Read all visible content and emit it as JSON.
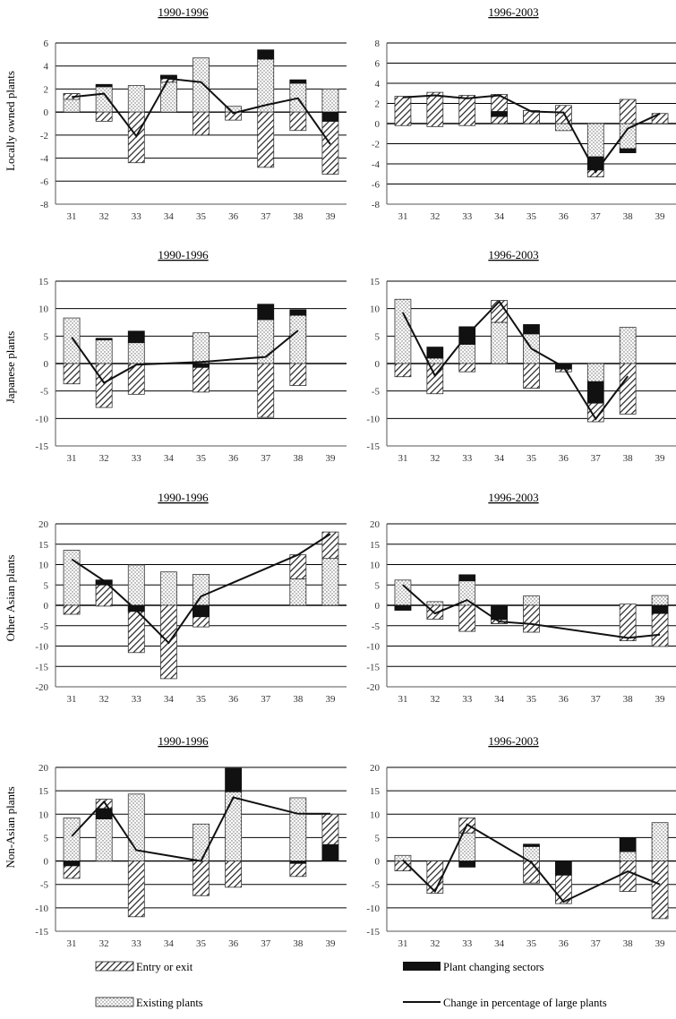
{
  "legend": {
    "entry_exit": "Entry or exit",
    "existing": "Existing plants",
    "changing": "Plant changing sectors",
    "line": "Change in percentage of large plants"
  },
  "row_labels": [
    "Locally owned plants",
    "Japanese plants",
    "Other Asian plants",
    "Non-Asian plants"
  ],
  "colors": {
    "axis": "#555555",
    "grid": "#000000",
    "changing": "#111111",
    "line": "#111111"
  },
  "chart_data": [
    {
      "type": "bar",
      "title": "1990-1996",
      "ylabel": "Locally owned plants",
      "categories": [
        "31",
        "32",
        "33",
        "34",
        "35",
        "36",
        "37",
        "38",
        "39"
      ],
      "yticks": [
        -8,
        -6,
        -4,
        -2,
        0,
        2,
        4,
        6
      ],
      "ylim": [
        -8,
        6
      ],
      "bars": [
        {
          "existing": [
            0,
            1.6
          ],
          "entry": [
            1.1,
            1.6
          ],
          "changing": null,
          "extra_entry": null
        },
        {
          "existing": [
            0,
            2.2
          ],
          "entry": [
            -0.8,
            0
          ],
          "changing": [
            2.2,
            2.4
          ]
        },
        {
          "existing": [
            0,
            2.3
          ],
          "entry": [
            -4.4,
            0
          ],
          "changing": null
        },
        {
          "existing": [
            0,
            2.6
          ],
          "entry": [
            2.6,
            3.1
          ],
          "changing": [
            2.9,
            3.2
          ]
        },
        {
          "existing": [
            0,
            4.7
          ],
          "entry": [
            -2.0,
            0
          ],
          "changing": null
        },
        {
          "existing": [
            0,
            0.5
          ],
          "entry": [
            -0.7,
            0
          ],
          "changing": null
        },
        {
          "existing": [
            0,
            4.6
          ],
          "entry": [
            -4.8,
            0
          ],
          "changing": [
            4.6,
            5.4
          ]
        },
        {
          "existing": [
            0,
            2.5
          ],
          "entry": [
            -1.6,
            0
          ],
          "changing": [
            2.5,
            2.8
          ]
        },
        {
          "existing": [
            0,
            2.0
          ],
          "entry": [
            -5.4,
            -0.8
          ],
          "changing": [
            -0.8,
            0
          ]
        }
      ],
      "line": [
        1.3,
        1.6,
        -2.1,
        2.9,
        2.6,
        -0.1,
        0.6,
        1.2,
        -2.8
      ]
    },
    {
      "type": "bar",
      "title": "1996-2003",
      "ylabel": "",
      "categories": [
        "31",
        "32",
        "33",
        "34",
        "35",
        "36",
        "37",
        "38",
        "39"
      ],
      "yticks": [
        -8,
        -6,
        -4,
        -2,
        0,
        2,
        4,
        6,
        8
      ],
      "ylim": [
        -8,
        8
      ],
      "bars": [
        {
          "existing": [
            0,
            0.5
          ],
          "entry": [
            -0.2,
            2.7
          ],
          "changing": null
        },
        {
          "existing": null,
          "entry": [
            -0.3,
            3.1
          ],
          "changing": null
        },
        {
          "existing": null,
          "entry": [
            -0.2,
            2.8
          ],
          "changing": null
        },
        {
          "existing": null,
          "entry": [
            0,
            2.9
          ],
          "changing": [
            0.7,
            1.2
          ]
        },
        {
          "existing": [
            0,
            1.3
          ],
          "entry": [
            0,
            1.3
          ],
          "changing": null
        },
        {
          "existing": [
            -0.7,
            0
          ],
          "entry": [
            0,
            1.8
          ],
          "changing": null
        },
        {
          "existing": [
            -3.3,
            0
          ],
          "entry": [
            -5.3,
            -4.6
          ],
          "changing": [
            -4.6,
            -3.3
          ]
        },
        {
          "existing": [
            -2.5,
            0
          ],
          "entry": [
            0,
            2.4
          ],
          "changing": [
            -2.9,
            -2.5
          ]
        },
        {
          "existing": null,
          "entry": [
            0,
            1.0
          ],
          "changing": null
        }
      ],
      "line": [
        2.6,
        2.8,
        2.5,
        2.8,
        1.2,
        1.1,
        -4.8,
        -0.5,
        1.0
      ]
    },
    {
      "type": "bar",
      "title": "1990-1996",
      "ylabel": "Japanese plants",
      "categories": [
        "31",
        "32",
        "33",
        "34",
        "35",
        "36",
        "37",
        "38",
        "39"
      ],
      "yticks": [
        -15,
        -10,
        -5,
        0,
        5,
        10,
        15
      ],
      "ylim": [
        -15,
        15
      ],
      "bars": [
        {
          "existing": [
            0,
            8.3
          ],
          "entry": [
            -3.7,
            0
          ],
          "changing": null
        },
        {
          "existing": [
            0,
            4.3
          ],
          "entry": [
            -8.0,
            0
          ],
          "changing": [
            4.3,
            4.6
          ]
        },
        {
          "existing": [
            0,
            3.8
          ],
          "entry": [
            -5.6,
            0
          ],
          "changing": [
            3.8,
            5.9
          ]
        },
        null,
        {
          "existing": [
            0,
            5.6
          ],
          "entry": [
            -5.2,
            0
          ],
          "changing": [
            -0.7,
            0
          ]
        },
        null,
        {
          "existing": [
            0,
            8.0
          ],
          "entry": [
            -9.8,
            0
          ],
          "changing": [
            8.0,
            10.8
          ]
        },
        {
          "existing": [
            0,
            8.8
          ],
          "entry": [
            -4.0,
            0
          ],
          "changing": [
            8.8,
            9.8
          ]
        },
        null
      ],
      "line": [
        4.8,
        -3.5,
        null,
        null,
        0.3,
        null,
        1.2,
        6.0,
        null
      ],
      "line_points": [
        [
          0,
          4.8
        ],
        [
          1,
          -3.5
        ],
        [
          2,
          -0.2
        ],
        [
          4,
          0.3
        ],
        [
          6,
          1.2
        ],
        [
          7,
          6.0
        ]
      ]
    },
    {
      "type": "bar",
      "title": "1996-2003",
      "ylabel": "",
      "categories": [
        "31",
        "32",
        "33",
        "34",
        "35",
        "36",
        "37",
        "38",
        "39"
      ],
      "yticks": [
        -15,
        -10,
        -5,
        0,
        5,
        10,
        15
      ],
      "ylim": [
        -15,
        15
      ],
      "bars": [
        {
          "existing": [
            0,
            11.7
          ],
          "entry": [
            -2.4,
            0
          ],
          "changing": null
        },
        {
          "existing": [
            0,
            1.0
          ],
          "entry": [
            -5.5,
            0
          ],
          "changing": [
            1.0,
            3.0
          ]
        },
        {
          "existing": [
            0,
            3.5
          ],
          "entry": [
            -1.5,
            0
          ],
          "changing": [
            3.5,
            6.7
          ]
        },
        {
          "existing": [
            0,
            7.5
          ],
          "entry": [
            7.5,
            11.5
          ],
          "changing": null
        },
        {
          "existing": [
            0,
            5.4
          ],
          "entry": [
            -4.5,
            0
          ],
          "changing": [
            5.4,
            7.1
          ]
        },
        {
          "existing": null,
          "entry": [
            -1.5,
            0
          ],
          "changing": [
            -1.0,
            0
          ]
        },
        {
          "existing": [
            -3.3,
            0
          ],
          "entry": [
            -10.6,
            -7.2
          ],
          "changing": [
            -7.2,
            -3.3
          ]
        },
        {
          "existing": [
            0,
            6.6
          ],
          "entry": [
            -9.2,
            0
          ],
          "changing": null
        },
        null
      ],
      "line": [
        9.3,
        -2.2,
        5.2,
        11.3,
        2.7,
        -0.6,
        -10.1,
        -2.3,
        null
      ]
    },
    {
      "type": "bar",
      "title": "1990-1996",
      "ylabel": "Other Asian plants",
      "categories": [
        "31",
        "32",
        "33",
        "34",
        "35",
        "36",
        "37",
        "38",
        "39"
      ],
      "yticks": [
        -20,
        -15,
        -10,
        -5,
        0,
        5,
        10,
        15,
        20
      ],
      "ylim": [
        -20,
        20
      ],
      "bars": [
        {
          "existing": [
            0,
            13.5
          ],
          "entry": [
            -2.2,
            0
          ],
          "changing": null
        },
        {
          "existing": [
            0,
            5.0
          ],
          "entry": [
            -0.2,
            6.2
          ],
          "changing": [
            5.0,
            6.2
          ]
        },
        {
          "existing": [
            0,
            9.9
          ],
          "entry": [
            -11.6,
            0
          ],
          "changing": [
            -1.5,
            0
          ]
        },
        {
          "existing": [
            0,
            8.2
          ],
          "entry": [
            -18.0,
            0
          ],
          "changing": null
        },
        {
          "existing": [
            0,
            7.6
          ],
          "entry": [
            -5.3,
            0
          ],
          "changing": [
            -2.8,
            0
          ]
        },
        null,
        null,
        {
          "existing": [
            0,
            6.5
          ],
          "entry": [
            6.5,
            12.4
          ],
          "changing": null
        },
        {
          "existing": [
            0,
            11.5
          ],
          "entry": [
            11.5,
            18.0
          ],
          "changing": null
        }
      ],
      "line_points": [
        [
          0,
          11.3
        ],
        [
          1,
          6.0
        ],
        [
          2,
          -1.2
        ],
        [
          3,
          -9.2
        ],
        [
          4,
          2.2
        ],
        [
          7,
          12.4
        ],
        [
          8,
          17.5
        ]
      ]
    },
    {
      "type": "bar",
      "title": "1996-2003",
      "ylabel": "",
      "categories": [
        "31",
        "32",
        "33",
        "34",
        "35",
        "36",
        "37",
        "38",
        "39"
      ],
      "yticks": [
        -20,
        -15,
        -10,
        -5,
        0,
        5,
        10,
        15,
        20
      ],
      "ylim": [
        -20,
        20
      ],
      "bars": [
        {
          "existing": [
            0,
            6.2
          ],
          "entry": [
            -1.2,
            0
          ],
          "changing": [
            -1.2,
            0
          ]
        },
        {
          "existing": [
            0,
            0.9
          ],
          "entry": [
            -3.4,
            0
          ],
          "changing": null
        },
        {
          "existing": [
            0,
            6.0
          ],
          "entry": [
            -6.4,
            0
          ],
          "changing": [
            6.0,
            7.5
          ]
        },
        {
          "existing": [
            -4.5,
            -3.5
          ],
          "entry": [
            -4.5,
            0
          ],
          "changing": [
            -3.5,
            0
          ]
        },
        {
          "existing": [
            0,
            2.3
          ],
          "entry": [
            -6.6,
            0
          ],
          "changing": null
        },
        null,
        null,
        {
          "existing": null,
          "entry": [
            -8.7,
            0.3
          ],
          "changing": null
        },
        {
          "existing": [
            0,
            2.4
          ],
          "entry": [
            -10.1,
            -2.0
          ],
          "changing": [
            -2.0,
            0
          ]
        }
      ],
      "line_points": [
        [
          0,
          5.0
        ],
        [
          1,
          -2.0
        ],
        [
          2,
          1.3
        ],
        [
          3,
          -4.0
        ],
        [
          4,
          -4.6
        ],
        [
          7,
          -8.0
        ],
        [
          8,
          -7.2
        ]
      ]
    },
    {
      "type": "bar",
      "title": "1990-1996",
      "ylabel": "Non-Asian plants",
      "categories": [
        "31",
        "32",
        "33",
        "34",
        "35",
        "36",
        "37",
        "38",
        "39"
      ],
      "yticks": [
        -15,
        -10,
        -5,
        0,
        5,
        10,
        15,
        20
      ],
      "ylim": [
        -15,
        20
      ],
      "bars": [
        {
          "existing": [
            0,
            9.2
          ],
          "entry": [
            -3.7,
            -1.0
          ],
          "changing": [
            -1.0,
            0
          ]
        },
        {
          "existing": [
            0,
            9.0
          ],
          "entry": [
            11.2,
            13.2
          ],
          "changing": [
            9.0,
            11.2
          ]
        },
        {
          "existing": [
            0,
            14.3
          ],
          "entry": [
            -11.9,
            0
          ],
          "changing": null
        },
        null,
        {
          "existing": [
            0,
            7.9
          ],
          "entry": [
            -7.4,
            0
          ],
          "changing": null
        },
        {
          "existing": [
            0,
            14.8
          ],
          "entry": [
            -5.6,
            0
          ],
          "changing": [
            14.8,
            19.8
          ]
        },
        null,
        {
          "existing": [
            0,
            13.5
          ],
          "entry": [
            -3.3,
            -0.5
          ],
          "changing": [
            -0.5,
            0
          ]
        },
        {
          "existing": null,
          "entry": [
            3.5,
            10.0
          ],
          "changing": [
            0,
            3.5
          ]
        }
      ],
      "line_points": [
        [
          0,
          5.3
        ],
        [
          1,
          12.7
        ],
        [
          2,
          2.3
        ],
        [
          4,
          0.0
        ],
        [
          5,
          13.6
        ],
        [
          7,
          10.1
        ],
        [
          8,
          10.1
        ]
      ]
    },
    {
      "type": "bar",
      "title": "1996-2003",
      "ylabel": "",
      "categories": [
        "31",
        "32",
        "33",
        "34",
        "35",
        "36",
        "37",
        "38",
        "39"
      ],
      "yticks": [
        -15,
        -10,
        -5,
        0,
        5,
        10,
        15,
        20
      ],
      "ylim": [
        -15,
        20
      ],
      "bars": [
        {
          "existing": [
            0,
            1.2
          ],
          "entry": [
            -2.1,
            0
          ],
          "changing": null
        },
        {
          "existing": null,
          "entry": [
            -6.9,
            0
          ],
          "changing": null
        },
        {
          "existing": [
            0,
            6.0
          ],
          "entry": [
            6.0,
            9.2
          ],
          "changing": [
            -1.3,
            0
          ]
        },
        null,
        {
          "existing": [
            0,
            3.1
          ],
          "entry": [
            -4.7,
            0
          ],
          "changing": [
            3.1,
            3.6
          ]
        },
        {
          "existing": null,
          "entry": [
            -9.1,
            -3.0
          ],
          "changing": [
            -3.0,
            0
          ]
        },
        null,
        {
          "existing": [
            0,
            2.0
          ],
          "entry": [
            -6.5,
            0
          ],
          "changing": [
            2.0,
            4.9
          ]
        },
        {
          "existing": [
            0,
            8.2
          ],
          "entry": [
            -12.3,
            0
          ],
          "changing": null
        }
      ],
      "line_points": [
        [
          0,
          0.2
        ],
        [
          1,
          -6.5
        ],
        [
          2,
          7.8
        ],
        [
          4,
          -0.3
        ],
        [
          5,
          -8.7
        ],
        [
          7,
          -2.2
        ],
        [
          8,
          -5.0
        ]
      ]
    }
  ]
}
